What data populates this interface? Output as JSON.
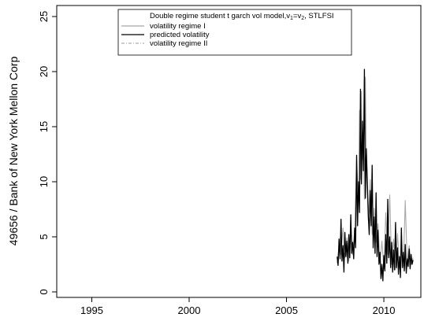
{
  "chart_data": {
    "type": "line",
    "title": "",
    "xlabel": "",
    "ylabel": "49656 / Bank of New York Mellon Corp",
    "xlim": [
      1993.2,
      2011.9
    ],
    "ylim": [
      -0.5,
      26
    ],
    "x_ticks": [
      "1995",
      "2000",
      "2005",
      "2010"
    ],
    "x_tick_values": [
      1995,
      2000,
      2005,
      2010
    ],
    "y_ticks": [
      "0",
      "5",
      "10",
      "15",
      "20",
      "25"
    ],
    "y_tick_values": [
      0,
      5,
      10,
      15,
      20,
      25
    ],
    "grid": false,
    "legend_position": "top-right",
    "legend": {
      "header_main": "Double regime student t garch vol model,",
      "header_nu1": "v",
      "header_sub1": "1",
      "header_eq": "=",
      "header_nu2": "v",
      "header_sub2": "2",
      "header_tail": ", STLFSI"
    },
    "series": [
      {
        "name": "volatility regime I",
        "color": "#a8a8a8",
        "style": "solid",
        "x": [
          2007.6,
          2007.7,
          2007.8,
          2007.9,
          2008.0,
          2008.1,
          2008.2,
          2008.3,
          2008.4,
          2008.5,
          2008.6,
          2008.7,
          2008.75,
          2008.8,
          2008.85,
          2008.9,
          2008.95,
          2009.0,
          2009.05,
          2009.1,
          2009.15,
          2009.2,
          2009.3,
          2009.4,
          2009.5,
          2009.6,
          2009.7,
          2009.8,
          2009.9,
          2010.0,
          2010.1,
          2010.2,
          2010.3,
          2010.4,
          2010.5,
          2010.6,
          2010.7,
          2010.8,
          2010.9,
          2011.0,
          2011.1,
          2011.2,
          2011.3,
          2011.4,
          2011.5
        ],
        "values": [
          2.6,
          4.2,
          3.4,
          5.8,
          3.1,
          4.9,
          2.8,
          6.2,
          3.4,
          5.6,
          12.0,
          8.5,
          16.5,
          10.2,
          18.2,
          12.0,
          14.5,
          8.4,
          19.5,
          11.0,
          9.0,
          6.5,
          10.2,
          5.2,
          7.6,
          4.5,
          6.2,
          2.6,
          4.6,
          2.1,
          7.2,
          3.4,
          8.8,
          2.5,
          4.8,
          2.0,
          5.3,
          2.4,
          3.8,
          2.2,
          8.3,
          2.6,
          4.2,
          2.5,
          3.1
        ]
      },
      {
        "name": "predicted volatility",
        "color": "#000000",
        "style": "solid",
        "x": [
          2007.6,
          2007.65,
          2007.7,
          2007.75,
          2007.8,
          2007.85,
          2007.9,
          2007.95,
          2008.0,
          2008.05,
          2008.1,
          2008.15,
          2008.2,
          2008.25,
          2008.3,
          2008.35,
          2008.4,
          2008.45,
          2008.5,
          2008.55,
          2008.6,
          2008.65,
          2008.7,
          2008.75,
          2008.8,
          2008.85,
          2008.9,
          2008.95,
          2009.0,
          2009.05,
          2009.1,
          2009.15,
          2009.2,
          2009.25,
          2009.3,
          2009.35,
          2009.4,
          2009.45,
          2009.5,
          2009.55,
          2009.6,
          2009.65,
          2009.7,
          2009.75,
          2009.8,
          2009.85,
          2009.9,
          2009.95,
          2010.0,
          2010.05,
          2010.1,
          2010.15,
          2010.2,
          2010.25,
          2010.3,
          2010.35,
          2010.4,
          2010.45,
          2010.5,
          2010.55,
          2010.6,
          2010.65,
          2010.7,
          2010.75,
          2010.8,
          2010.85,
          2010.9,
          2010.95,
          2011.0,
          2011.05,
          2011.1,
          2011.15,
          2011.2,
          2011.25,
          2011.3,
          2011.35,
          2011.4,
          2011.45,
          2011.5
        ],
        "values": [
          3.2,
          2.4,
          4.8,
          3.0,
          6.6,
          2.8,
          4.2,
          1.8,
          5.4,
          3.2,
          4.6,
          2.6,
          5.2,
          3.1,
          7.0,
          3.5,
          4.5,
          3.0,
          5.8,
          4.0,
          12.4,
          6.0,
          10.0,
          7.2,
          18.4,
          9.8,
          15.5,
          11.0,
          20.2,
          8.5,
          13.0,
          10.0,
          7.0,
          5.2,
          9.2,
          6.0,
          11.5,
          4.0,
          6.8,
          3.5,
          9.0,
          3.2,
          5.6,
          2.5,
          3.6,
          1.2,
          2.5,
          1.0,
          3.3,
          1.9,
          5.2,
          2.6,
          8.4,
          3.1,
          5.0,
          2.2,
          4.5,
          1.8,
          3.8,
          2.0,
          6.3,
          2.2,
          4.0,
          1.6,
          3.2,
          1.3,
          5.8,
          2.2,
          3.6,
          1.9,
          4.3,
          1.7,
          3.0,
          2.3,
          3.9,
          2.1,
          3.4,
          2.5,
          2.9
        ]
      },
      {
        "name": "volatility regime II",
        "color": "#9a9a9a",
        "style": "dashdot",
        "x": [],
        "values": []
      }
    ]
  }
}
